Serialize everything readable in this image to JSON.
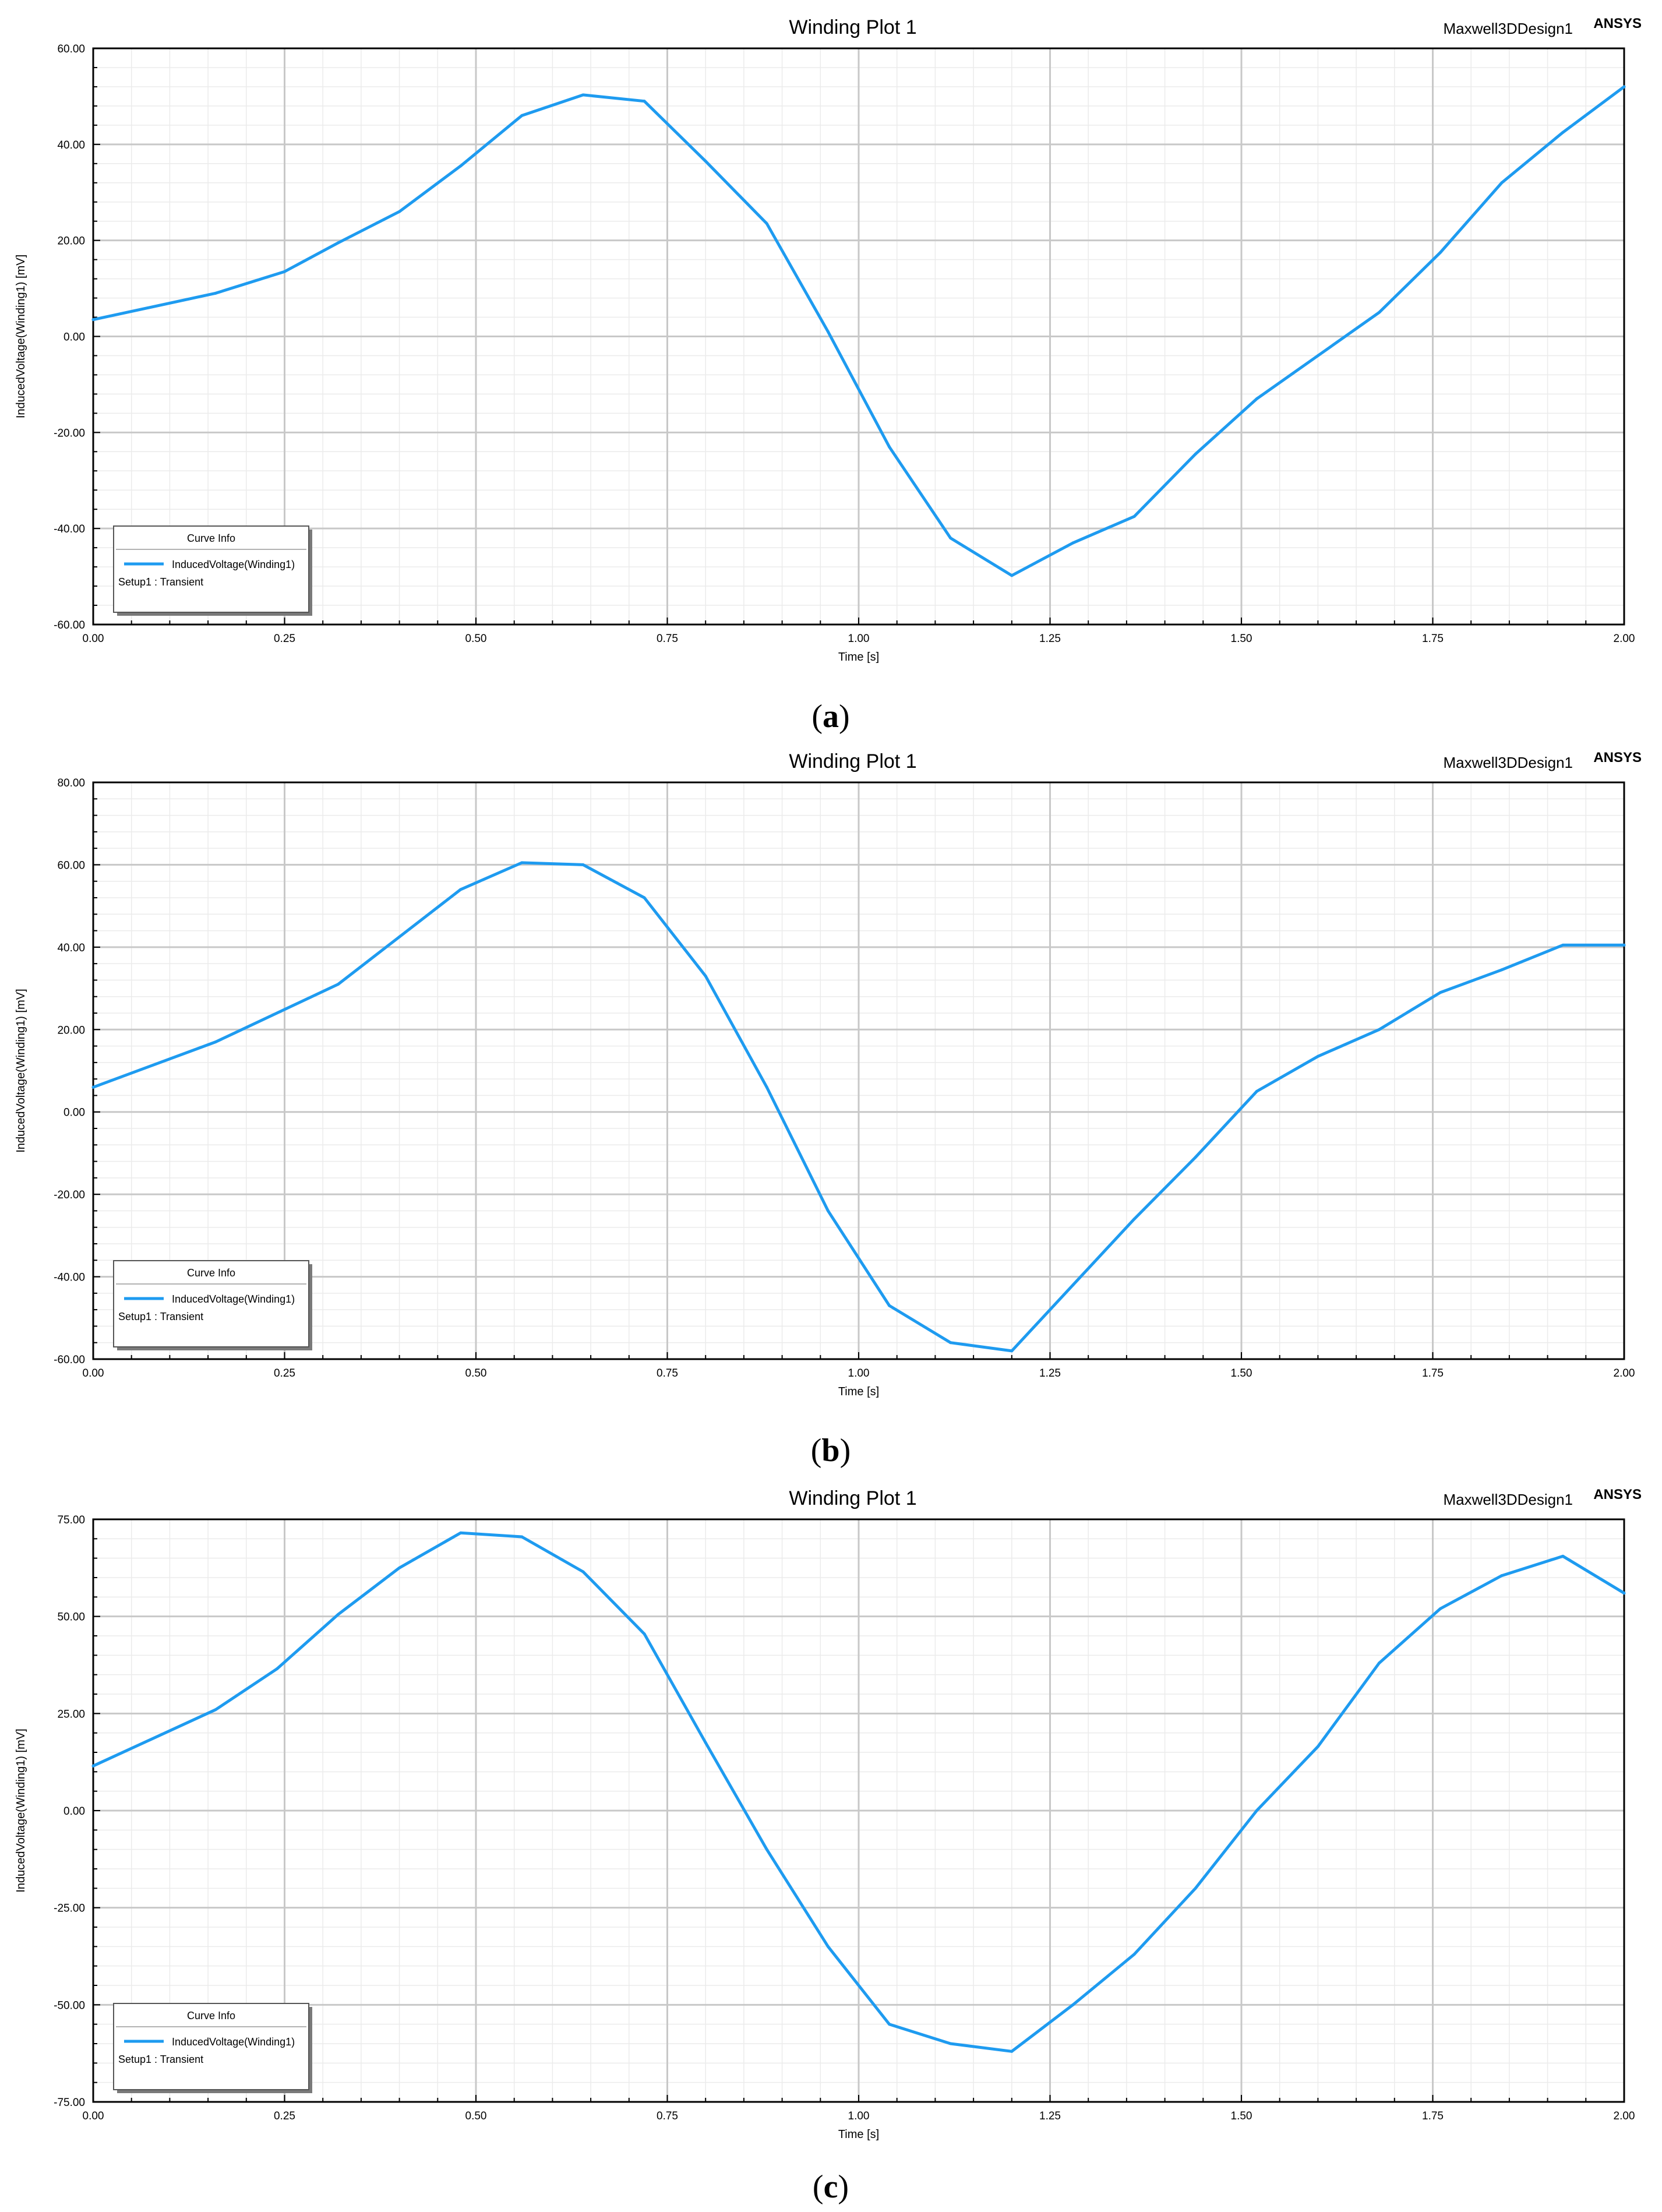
{
  "colors": {
    "series": "#1e9bf0",
    "major_grid": "#c8c8c8",
    "minor_grid": "#ebebeb",
    "frame": "#000000"
  },
  "chart_data": [
    {
      "type": "line",
      "panel": "a",
      "caption_open": "(",
      "caption_letter": "a",
      "caption_close": ")",
      "title": "Winding Plot 1",
      "header_right": "Maxwell3DDesign1",
      "brand": "ANSYS",
      "xlabel": "Time [s]",
      "ylabel": "InducedVoltage(Winding1) [mV]",
      "xlim": [
        0,
        2
      ],
      "ylim": [
        -60,
        60
      ],
      "x_ticks": [
        "0.00",
        "0.25",
        "0.50",
        "0.75",
        "1.00",
        "1.25",
        "1.50",
        "1.75",
        "2.00"
      ],
      "y_ticks": [
        "-60.00",
        "-40.00",
        "-20.00",
        "0.00",
        "20.00",
        "40.00",
        "60.00"
      ],
      "grid": true,
      "legend": {
        "position": "bottom-left",
        "title": "Curve Info",
        "entry": "InducedVoltage(Winding1)",
        "subtitle": "Setup1 : Transient"
      },
      "series": [
        {
          "name": "InducedVoltage(Winding1)",
          "x": [
            0,
            0.16,
            0.25,
            0.32,
            0.4,
            0.48,
            0.56,
            0.64,
            0.72,
            0.8,
            0.88,
            0.96,
            1.04,
            1.12,
            1.2,
            1.28,
            1.36,
            1.44,
            1.52,
            1.6,
            1.68,
            1.76,
            1.84,
            1.92,
            2.0
          ],
          "y": [
            3.5,
            9,
            13.5,
            19.5,
            26,
            35.5,
            46,
            50.3,
            49,
            36.5,
            23.5,
            1,
            -23,
            -42,
            -49.8,
            -43,
            -37.5,
            -24.5,
            -13,
            -4,
            5,
            17.5,
            32,
            42.5,
            52
          ]
        }
      ]
    },
    {
      "type": "line",
      "panel": "b",
      "caption_open": "(",
      "caption_letter": "b",
      "caption_close": ")",
      "title": "Winding Plot 1",
      "header_right": "Maxwell3DDesign1",
      "brand": "ANSYS",
      "xlabel": "Time [s]",
      "ylabel": "InducedVoltage(Winding1) [mV]",
      "xlim": [
        0,
        2
      ],
      "ylim": [
        -60,
        80
      ],
      "x_ticks": [
        "0.00",
        "0.25",
        "0.50",
        "0.75",
        "1.00",
        "1.25",
        "1.50",
        "1.75",
        "2.00"
      ],
      "y_ticks": [
        "-60.00",
        "-40.00",
        "-20.00",
        "0.00",
        "20.00",
        "40.00",
        "60.00",
        "80.00"
      ],
      "grid": true,
      "legend": {
        "position": "bottom-left",
        "title": "Curve Info",
        "entry": "InducedVoltage(Winding1)",
        "subtitle": "Setup1 : Transient"
      },
      "series": [
        {
          "name": "InducedVoltage(Winding1)",
          "x": [
            0,
            0.16,
            0.32,
            0.4,
            0.48,
            0.56,
            0.64,
            0.72,
            0.8,
            0.88,
            0.96,
            1.04,
            1.12,
            1.2,
            1.28,
            1.36,
            1.44,
            1.52,
            1.6,
            1.68,
            1.76,
            1.84,
            1.92,
            2.0
          ],
          "y": [
            6,
            17,
            31,
            42.5,
            54,
            60.5,
            60,
            52,
            33,
            6,
            -24,
            -47,
            -56,
            -58,
            -42,
            -26,
            -11,
            5,
            13.5,
            20,
            29,
            34.5,
            40.5,
            40.5
          ]
        }
      ]
    },
    {
      "type": "line",
      "panel": "c",
      "caption_open": "(",
      "caption_letter": "c",
      "caption_close": ")",
      "title": "Winding Plot 1",
      "header_right": "Maxwell3DDesign1",
      "brand": "ANSYS",
      "xlabel": "Time [s]",
      "ylabel": "InducedVoltage(Winding1) [mV]",
      "xlim": [
        0,
        2
      ],
      "ylim": [
        -75,
        75
      ],
      "x_ticks": [
        "0.00",
        "0.25",
        "0.50",
        "0.75",
        "1.00",
        "1.25",
        "1.50",
        "1.75",
        "2.00"
      ],
      "y_ticks": [
        "-75.00",
        "-50.00",
        "-25.00",
        "0.00",
        "25.00",
        "50.00",
        "75.00"
      ],
      "grid": true,
      "legend": {
        "position": "bottom-left",
        "title": "Curve Info",
        "entry": "InducedVoltage(Winding1)",
        "subtitle": "Setup1 : Transient"
      },
      "series": [
        {
          "name": "InducedVoltage(Winding1)",
          "x": [
            0,
            0.16,
            0.24,
            0.32,
            0.4,
            0.48,
            0.56,
            0.64,
            0.72,
            0.8,
            0.88,
            0.96,
            1.04,
            1.12,
            1.2,
            1.28,
            1.36,
            1.44,
            1.52,
            1.6,
            1.68,
            1.76,
            1.84,
            1.92,
            2.0
          ],
          "y": [
            11.5,
            26,
            36.5,
            50.5,
            62.5,
            71.5,
            70.5,
            61.5,
            45.5,
            17.5,
            -10,
            -35,
            -55,
            -60,
            -62,
            -50,
            -37,
            -20,
            0,
            16.5,
            38,
            52,
            60.5,
            65.5,
            56
          ]
        }
      ]
    }
  ]
}
